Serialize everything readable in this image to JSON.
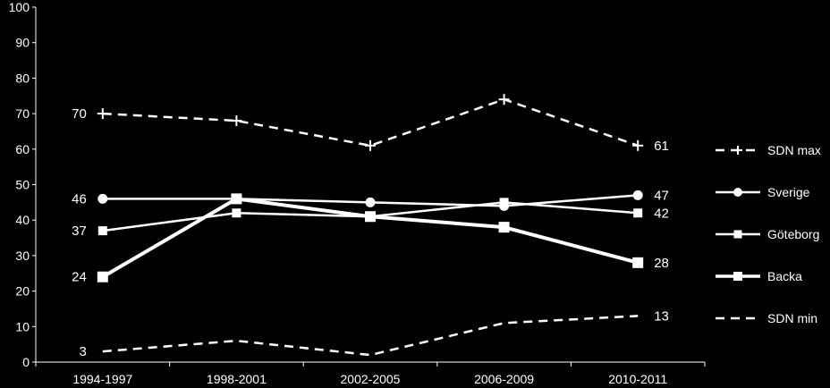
{
  "chart_data": {
    "type": "line",
    "categories": [
      "1994-1997",
      "1998-2001",
      "2002-2005",
      "2006-2009",
      "2010-2011"
    ],
    "ylim": [
      0,
      100
    ],
    "yticks": [
      0,
      10,
      20,
      30,
      40,
      50,
      60,
      70,
      80,
      90,
      100
    ],
    "grid": false,
    "legend_position": "right",
    "series": [
      {
        "name": "SDN max",
        "values": [
          70,
          68,
          61,
          74,
          61
        ],
        "line": "dashed",
        "marker": "plus",
        "thick": false,
        "color": "#ffffff"
      },
      {
        "name": "Sverige",
        "values": [
          46,
          46,
          45,
          44,
          47
        ],
        "line": "solid",
        "marker": "circle",
        "thick": false,
        "color": "#ffffff"
      },
      {
        "name": "Göteborg",
        "values": [
          37,
          42,
          41,
          45,
          42
        ],
        "line": "solid",
        "marker": "square-small",
        "thick": false,
        "color": "#ffffff"
      },
      {
        "name": "Backa",
        "values": [
          24,
          46,
          41,
          38,
          28
        ],
        "line": "solid",
        "marker": "square",
        "thick": true,
        "color": "#ffffff"
      },
      {
        "name": "SDN min",
        "values": [
          3,
          6,
          2,
          11,
          13
        ],
        "line": "dashed",
        "marker": "none",
        "thick": false,
        "color": "#ffffff"
      }
    ],
    "data_labels": [
      {
        "series": "SDN max",
        "index": 0,
        "text": "70"
      },
      {
        "series": "SDN max",
        "index": 4,
        "text": "61"
      },
      {
        "series": "Sverige",
        "index": 0,
        "text": "46"
      },
      {
        "series": "Sverige",
        "index": 4,
        "text": "47"
      },
      {
        "series": "Göteborg",
        "index": 0,
        "text": "37"
      },
      {
        "series": "Göteborg",
        "index": 4,
        "text": "42"
      },
      {
        "series": "Backa",
        "index": 0,
        "text": "24"
      },
      {
        "series": "Backa",
        "index": 4,
        "text": "28"
      },
      {
        "series": "SDN min",
        "index": 0,
        "text": "3"
      },
      {
        "series": "SDN min",
        "index": 4,
        "text": "13"
      }
    ]
  }
}
